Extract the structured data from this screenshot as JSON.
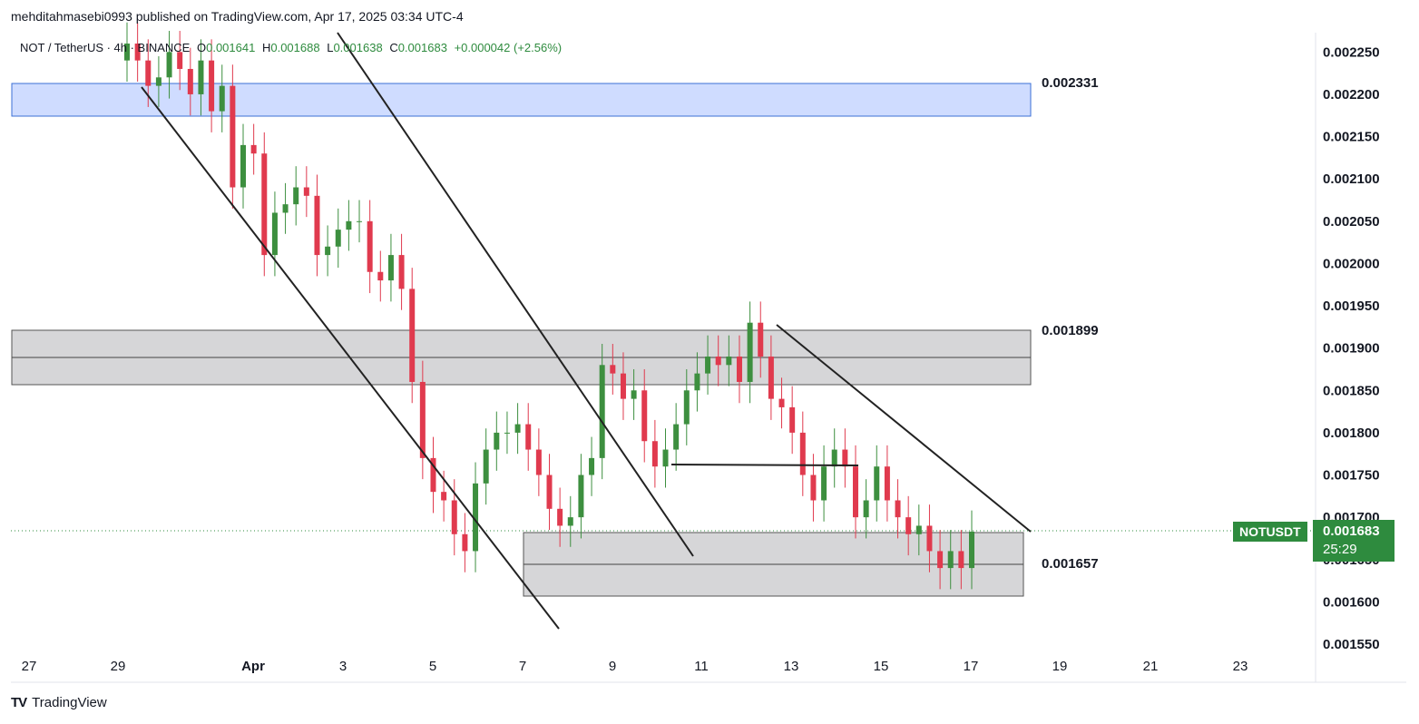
{
  "header": {
    "publisher_line": "mehditahmasebi0993 published on TradingView.com, Apr 17, 2025 03:34 UTC-4"
  },
  "symbol_line": {
    "pair": "NOT / TetherUS · 4h · BINANCE",
    "o_label": "O",
    "o_value": "0.001641",
    "h_label": "H",
    "h_value": "0.001688",
    "l_label": "L",
    "l_value": "0.001638",
    "c_label": "C",
    "c_value": "0.001683",
    "change": "+0.000042 (+2.56%)"
  },
  "price_tag": {
    "symbol": "NOTUSDT",
    "value": "0.001683",
    "countdown": "25:29"
  },
  "levels": {
    "resistance_top": "0.002331",
    "mid_zone": "0.001899",
    "support": "0.001657"
  },
  "footer": {
    "brand": "TradingView"
  },
  "colors": {
    "up": "#3d8f3f",
    "down": "#e03a4e",
    "blue_zone": "#cfdcff",
    "gray_zone": "#d6d6d8",
    "tag_green": "#2e8b3e"
  },
  "chart_data": {
    "type": "candlestick",
    "title": "NOT / TetherUS · 4h · BINANCE",
    "xlabel": "",
    "ylabel": "",
    "x_ticks": [
      "27",
      "29",
      "Apr",
      "3",
      "5",
      "7",
      "9",
      "11",
      "13",
      "15",
      "17",
      "19",
      "21",
      "23"
    ],
    "y_ticks": [
      "0.001550",
      "0.001600",
      "0.001650",
      "0.001700",
      "0.001750",
      "0.001800",
      "0.001850",
      "0.001900",
      "0.001950",
      "0.002000",
      "0.002050",
      "0.002100",
      "0.002150",
      "0.002200",
      "0.002250"
    ],
    "ylim": [
      0.00155,
      0.00226
    ],
    "time_range": [
      "2025-03-29",
      "2025-04-17"
    ],
    "last_close": 0.001683,
    "zones": [
      {
        "name": "resistance",
        "low": 0.002165,
        "high": 0.002205,
        "color": "blue"
      },
      {
        "name": "mid",
        "low": 0.001855,
        "high": 0.001918,
        "color": "gray"
      },
      {
        "name": "support",
        "low": 0.001609,
        "high": 0.001681,
        "color": "gray"
      }
    ],
    "candles_close": [
      0.00226,
      0.00224,
      0.00221,
      0.00222,
      0.00225,
      0.00223,
      0.0022,
      0.00224,
      0.00218,
      0.00221,
      0.00209,
      0.00214,
      0.00213,
      0.00201,
      0.00206,
      0.00207,
      0.00209,
      0.00208,
      0.00201,
      0.00202,
      0.00204,
      0.00205,
      0.00205,
      0.00199,
      0.00198,
      0.00201,
      0.00197,
      0.00186,
      0.00177,
      0.00173,
      0.00172,
      0.00168,
      0.00166,
      0.00174,
      0.00178,
      0.0018,
      0.0018,
      0.00181,
      0.00178,
      0.00175,
      0.00171,
      0.00169,
      0.0017,
      0.00175,
      0.00177,
      0.00188,
      0.00187,
      0.00184,
      0.00185,
      0.00179,
      0.00176,
      0.00178,
      0.00181,
      0.00185,
      0.00187,
      0.00189,
      0.00188,
      0.00189,
      0.00186,
      0.00193,
      0.00189,
      0.00184,
      0.00183,
      0.0018,
      0.00175,
      0.00172,
      0.00176,
      0.00178,
      0.00176,
      0.0017,
      0.00172,
      0.00176,
      0.00172,
      0.0017,
      0.00168,
      0.00169,
      0.00166,
      0.00164,
      0.00166,
      0.00164,
      0.001683
    ]
  }
}
